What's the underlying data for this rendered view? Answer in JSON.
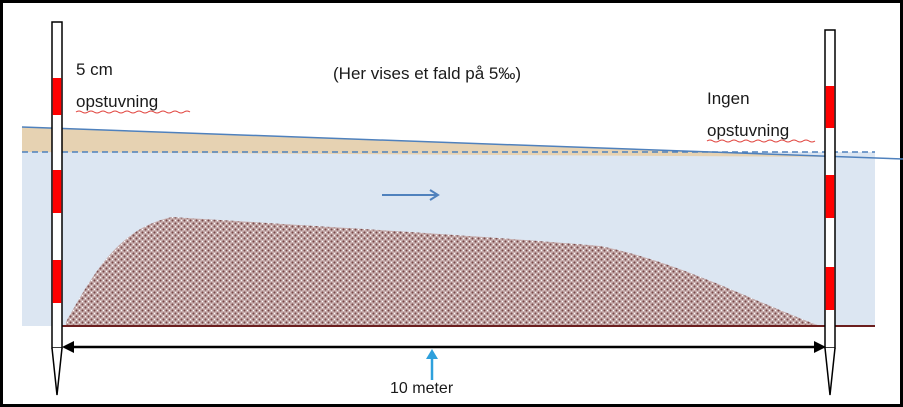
{
  "title": "(Her vises et fald på 5‰)",
  "left_label": {
    "line1": "5 cm",
    "line2": "opstuvning"
  },
  "right_label": {
    "line1": "Ingen",
    "line2": "opstuvning"
  },
  "measurement_label": "10 meter",
  "colors": {
    "frame": "#000000",
    "water_body": "#dce6f2",
    "raised_water": "#e6d2b2",
    "water_line": "#4f81bd",
    "flow_arrow": "#4f81bd",
    "sediment": "#9e7d7d",
    "riverbed": "#6b1e1e",
    "staff_red": "#ff0000",
    "measure_arrow_marker": "#2ea0dc"
  },
  "icons": {
    "flow_arrow": "arrow-right-icon",
    "measure_marker": "arrow-up-icon"
  }
}
